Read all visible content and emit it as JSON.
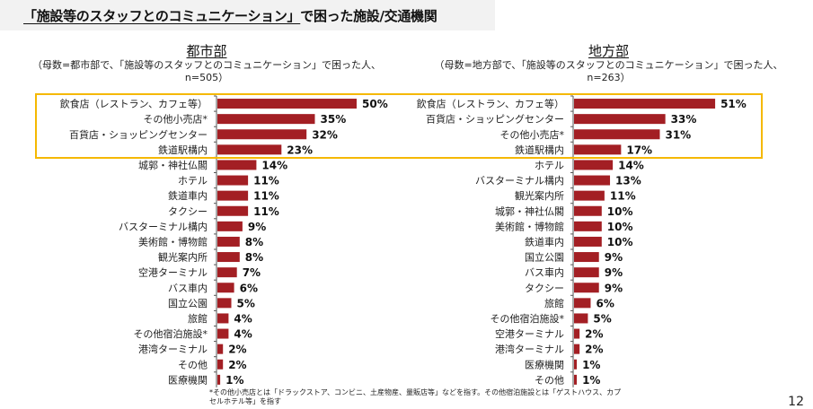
{
  "header": {
    "title_quoted": "「施設等のスタッフとのコミュニケーション」",
    "title_rest": "で困った施設/交通機関"
  },
  "colors": {
    "bar": "#a31f24",
    "highlight": "#f5b800",
    "title_bg": "#f2f2f2"
  },
  "chart_data": [
    {
      "type": "bar",
      "orientation": "horizontal",
      "title": "都市部",
      "subtitle_line1": "（母数=都市部で、「施設等のスタッフとのコミュニケーション」で困った人、",
      "subtitle_line2": "n=505）",
      "unit": "%",
      "xlim": [
        0,
        50
      ],
      "grid": false,
      "highlighted_top_n": 4,
      "categories": [
        "飲食店（レストラン、カフェ等）",
        "その他小売店*",
        "百貨店・ショッピングセンター",
        "鉄道駅構内",
        "城郭・神社仏閣",
        "ホテル",
        "鉄道車内",
        "タクシー",
        "バスターミナル構内",
        "美術館・博物館",
        "観光案内所",
        "空港ターミナル",
        "バス車内",
        "国立公園",
        "旅館",
        "その他宿泊施設*",
        "港湾ターミナル",
        "その他",
        "医療機関"
      ],
      "values": [
        50,
        35,
        32,
        23,
        14,
        11,
        11,
        11,
        9,
        8,
        8,
        7,
        6,
        5,
        4,
        4,
        2,
        2,
        1
      ],
      "labels": [
        "50%",
        "35%",
        "32%",
        "23%",
        "14%",
        "11%",
        "11%",
        "11%",
        "9%",
        "8%",
        "8%",
        "7%",
        "6%",
        "5%",
        "4%",
        "4%",
        "2%",
        "2%",
        "1%"
      ]
    },
    {
      "type": "bar",
      "orientation": "horizontal",
      "title": "地方部",
      "subtitle_line1": "（母数=地方部で、「施設等のスタッフとのコミュニケーション」で困った人、",
      "subtitle_line2": "n=263）",
      "unit": "%",
      "xlim": [
        0,
        51
      ],
      "grid": false,
      "highlighted_top_n": 4,
      "categories": [
        "飲食店（レストラン、カフェ等）",
        "百貨店・ショッピングセンター",
        "その他小売店*",
        "鉄道駅構内",
        "ホテル",
        "バスターミナル構内",
        "観光案内所",
        "城郭・神社仏閣",
        "美術館・博物館",
        "鉄道車内",
        "国立公園",
        "バス車内",
        "タクシー",
        "旅館",
        "その他宿泊施設*",
        "空港ターミナル",
        "港湾ターミナル",
        "医療機関",
        "その他"
      ],
      "values": [
        51,
        33,
        31,
        17,
        14,
        13,
        11,
        10,
        10,
        10,
        9,
        9,
        9,
        6,
        5,
        2,
        2,
        1,
        1
      ],
      "labels": [
        "51%",
        "33%",
        "31%",
        "17%",
        "14%",
        "13%",
        "11%",
        "10%",
        "10%",
        "10%",
        "9%",
        "9%",
        "9%",
        "6%",
        "5%",
        "2%",
        "2%",
        "1%",
        "1%"
      ]
    }
  ],
  "footnote": "*その他小売店とは「ドラックストア、コンビニ、土産物産、量販店等」などを指す。その他宿泊施設とは「ゲストハウス、カプセルホテル等」を指す",
  "page_number": "12"
}
